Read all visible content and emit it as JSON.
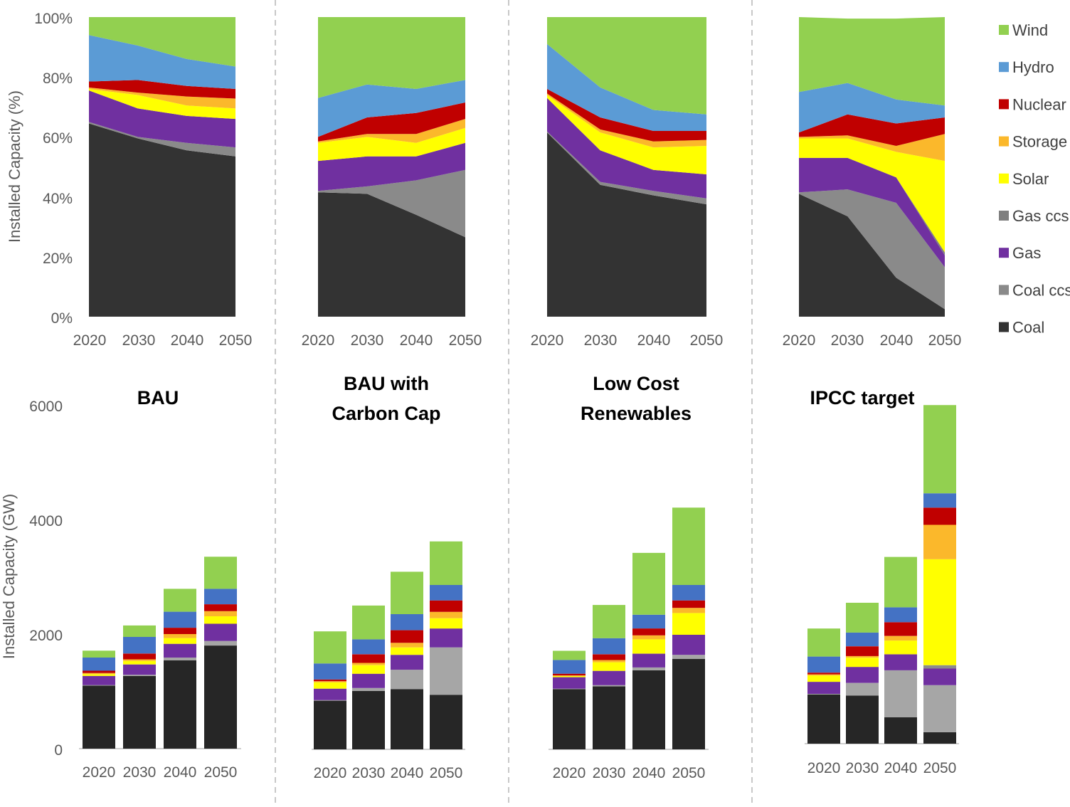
{
  "layers": [
    "Coal",
    "Coal ccs",
    "Gas",
    "Gas ccs",
    "Solar",
    "Storage",
    "Nuclear",
    "Hydro",
    "Wind"
  ],
  "colors": {
    "Coal": "#333333",
    "Coal ccs": "#8a8a8a",
    "Gas": "#7030a0",
    "Gas ccs": "#7f7f7f",
    "Solar": "#ffff00",
    "Storage": "#fbb82b",
    "Nuclear": "#c00000",
    "Hydro": "#5b9bd5",
    "Wind": "#92d050"
  },
  "bar_colors": {
    "Coal": "#262626",
    "Coal ccs": "#a6a6a6",
    "Gas": "#7030a0",
    "Gas ccs": "#8c8c8c",
    "Solar": "#ffff00",
    "Storage": "#fbb82b",
    "Nuclear": "#c00000",
    "Hydro": "#4472c4",
    "Wind": "#92d050"
  },
  "legend": {
    "order": [
      "Wind",
      "Hydro",
      "Nuclear",
      "Storage",
      "Solar",
      "Gas ccs",
      "Gas",
      "Coal ccs",
      "Coal"
    ],
    "placement": "right"
  },
  "chart_data": [
    {
      "type": "area",
      "stacked": true,
      "normalized": true,
      "title": "BAU",
      "ylabel": "Installed Capacity (%)",
      "ylim": [
        0,
        100
      ],
      "y_ticks": [
        "0%",
        "20%",
        "40%",
        "60%",
        "80%",
        "100%"
      ],
      "x": [
        "2020",
        "2030",
        "2040",
        "2050"
      ],
      "series": [
        {
          "name": "Coal",
          "values": [
            64.5,
            59.5,
            55.5,
            53.5
          ]
        },
        {
          "name": "Coal ccs",
          "values": [
            0.5,
            0.5,
            2.5,
            3
          ]
        },
        {
          "name": "Gas",
          "values": [
            10.5,
            9.5,
            9,
            9.5
          ]
        },
        {
          "name": "Gas ccs",
          "values": [
            0,
            0,
            0,
            0
          ]
        },
        {
          "name": "Solar",
          "values": [
            0.5,
            4.5,
            3.5,
            3.5
          ]
        },
        {
          "name": "Storage",
          "values": [
            0.5,
            0.8,
            3,
            3.3
          ]
        },
        {
          "name": "Nuclear",
          "values": [
            2,
            4.2,
            3.5,
            3.2
          ]
        },
        {
          "name": "Hydro",
          "values": [
            15.5,
            11.5,
            9,
            7.5
          ]
        },
        {
          "name": "Wind",
          "values": [
            6,
            9.5,
            14.5,
            16.5
          ]
        }
      ]
    },
    {
      "type": "area",
      "stacked": true,
      "normalized": true,
      "title": "BAU with Carbon Cap",
      "ylim": [
        0,
        100
      ],
      "x": [
        "2020",
        "2030",
        "2040",
        "2050"
      ],
      "series": [
        {
          "name": "Coal",
          "values": [
            41.5,
            41,
            34,
            26.5
          ]
        },
        {
          "name": "Coal ccs",
          "values": [
            0.5,
            2.5,
            11.5,
            22.5
          ]
        },
        {
          "name": "Gas",
          "values": [
            10,
            10,
            8,
            9
          ]
        },
        {
          "name": "Gas ccs",
          "values": [
            0,
            0,
            0,
            0
          ]
        },
        {
          "name": "Solar",
          "values": [
            6,
            6.5,
            4.5,
            5
          ]
        },
        {
          "name": "Storage",
          "values": [
            0.5,
            1,
            3,
            3
          ]
        },
        {
          "name": "Nuclear",
          "values": [
            1.5,
            5.5,
            7,
            5.5
          ]
        },
        {
          "name": "Hydro",
          "values": [
            13,
            11,
            8,
            7.5
          ]
        },
        {
          "name": "Wind",
          "values": [
            27,
            22.5,
            24,
            21
          ]
        }
      ]
    },
    {
      "type": "area",
      "stacked": true,
      "normalized": true,
      "title": "Low Cost Renewables",
      "ylim": [
        0,
        100
      ],
      "x": [
        "2020",
        "2030",
        "2040",
        "2050"
      ],
      "series": [
        {
          "name": "Coal",
          "values": [
            61.5,
            44,
            40.5,
            37.5
          ]
        },
        {
          "name": "Coal ccs",
          "values": [
            0.3,
            1,
            1.5,
            2
          ]
        },
        {
          "name": "Gas",
          "values": [
            11.2,
            10.5,
            7,
            8
          ]
        },
        {
          "name": "Gas ccs",
          "values": [
            0,
            0,
            0,
            0
          ]
        },
        {
          "name": "Solar",
          "values": [
            1,
            6,
            7.5,
            9.5
          ]
        },
        {
          "name": "Storage",
          "values": [
            0.5,
            1,
            2,
            2
          ]
        },
        {
          "name": "Nuclear",
          "values": [
            1.5,
            4,
            3.5,
            3
          ]
        },
        {
          "name": "Hydro",
          "values": [
            15,
            10,
            7,
            5.5
          ]
        },
        {
          "name": "Wind",
          "values": [
            9,
            23.5,
            31,
            32.5
          ]
        }
      ]
    },
    {
      "type": "area",
      "stacked": true,
      "normalized": true,
      "title": "IPCC target",
      "ylim": [
        0,
        100
      ],
      "x": [
        "2020",
        "2030",
        "2040",
        "2050"
      ],
      "series": [
        {
          "name": "Coal",
          "values": [
            41,
            33.5,
            13,
            2.5
          ]
        },
        {
          "name": "Coal ccs",
          "values": [
            0.5,
            9,
            25,
            14
          ]
        },
        {
          "name": "Gas",
          "values": [
            11.5,
            10.5,
            8.5,
            4
          ]
        },
        {
          "name": "Gas ccs",
          "values": [
            0,
            0,
            0,
            1
          ]
        },
        {
          "name": "Solar",
          "values": [
            6.5,
            6.5,
            8.5,
            30.5
          ]
        },
        {
          "name": "Storage",
          "values": [
            0.5,
            1,
            2,
            9
          ]
        },
        {
          "name": "Nuclear",
          "values": [
            1.5,
            7,
            7.5,
            5.5
          ]
        },
        {
          "name": "Hydro",
          "values": [
            13.5,
            10.5,
            8,
            4
          ]
        },
        {
          "name": "Wind",
          "values": [
            25,
            21.5,
            27,
            29.5
          ]
        }
      ]
    },
    {
      "type": "bar",
      "stacked": true,
      "ylabel": "Installed Capacity (GW)",
      "ylim": [
        0,
        6000
      ],
      "y_ticks": [
        "0",
        "2000",
        "4000",
        "6000"
      ],
      "categories": [
        "2020",
        "2030",
        "2040",
        "2050"
      ],
      "series": [
        {
          "name": "Coal",
          "values": [
            1100,
            1270,
            1540,
            1800
          ]
        },
        {
          "name": "Coal ccs",
          "values": [
            10,
            20,
            50,
            80
          ]
        },
        {
          "name": "Gas",
          "values": [
            160,
            180,
            240,
            300
          ]
        },
        {
          "name": "Gas ccs",
          "values": [
            0,
            0,
            0,
            0
          ]
        },
        {
          "name": "Solar",
          "values": [
            30,
            60,
            100,
            130
          ]
        },
        {
          "name": "Storage",
          "values": [
            20,
            30,
            70,
            90
          ]
        },
        {
          "name": "Nuclear",
          "values": [
            40,
            100,
            110,
            120
          ]
        },
        {
          "name": "Hydro",
          "values": [
            230,
            290,
            280,
            270
          ]
        },
        {
          "name": "Wind",
          "values": [
            120,
            200,
            400,
            560
          ]
        }
      ]
    },
    {
      "type": "bar",
      "stacked": true,
      "ylim": [
        0,
        6000
      ],
      "categories": [
        "2020",
        "2030",
        "2040",
        "2050"
      ],
      "series": [
        {
          "name": "Coal",
          "values": [
            850,
            1020,
            1050,
            950
          ]
        },
        {
          "name": "Coal ccs",
          "values": [
            10,
            50,
            340,
            830
          ]
        },
        {
          "name": "Gas",
          "values": [
            200,
            250,
            260,
            330
          ]
        },
        {
          "name": "Gas ccs",
          "values": [
            0,
            0,
            0,
            0
          ]
        },
        {
          "name": "Solar",
          "values": [
            110,
            150,
            130,
            180
          ]
        },
        {
          "name": "Storage",
          "values": [
            20,
            40,
            80,
            110
          ]
        },
        {
          "name": "Nuclear",
          "values": [
            30,
            150,
            220,
            200
          ]
        },
        {
          "name": "Hydro",
          "values": [
            280,
            260,
            280,
            270
          ]
        },
        {
          "name": "Wind",
          "values": [
            560,
            590,
            740,
            760
          ]
        }
      ]
    },
    {
      "type": "bar",
      "stacked": true,
      "ylim": [
        0,
        6000
      ],
      "categories": [
        "2020",
        "2030",
        "2040",
        "2050"
      ],
      "series": [
        {
          "name": "Coal",
          "values": [
            1050,
            1100,
            1380,
            1580
          ]
        },
        {
          "name": "Coal ccs",
          "values": [
            10,
            20,
            50,
            70
          ]
        },
        {
          "name": "Gas",
          "values": [
            200,
            250,
            240,
            350
          ]
        },
        {
          "name": "Gas ccs",
          "values": [
            0,
            0,
            0,
            0
          ]
        },
        {
          "name": "Solar",
          "values": [
            20,
            150,
            250,
            380
          ]
        },
        {
          "name": "Storage",
          "values": [
            10,
            40,
            70,
            90
          ]
        },
        {
          "name": "Nuclear",
          "values": [
            30,
            100,
            120,
            130
          ]
        },
        {
          "name": "Hydro",
          "values": [
            240,
            280,
            240,
            270
          ]
        },
        {
          "name": "Wind",
          "values": [
            160,
            580,
            1080,
            1350
          ]
        }
      ]
    },
    {
      "type": "bar",
      "stacked": true,
      "ylim": [
        0,
        6000
      ],
      "categories": [
        "2020",
        "2030",
        "2040",
        "2050"
      ],
      "series": [
        {
          "name": "Coal",
          "values": [
            860,
            840,
            460,
            200
          ]
        },
        {
          "name": "Coal ccs",
          "values": [
            10,
            220,
            820,
            820
          ]
        },
        {
          "name": "Gas",
          "values": [
            210,
            280,
            280,
            290
          ]
        },
        {
          "name": "Gas ccs",
          "values": [
            0,
            0,
            0,
            60
          ]
        },
        {
          "name": "Solar",
          "values": [
            110,
            160,
            240,
            1850
          ]
        },
        {
          "name": "Storage",
          "values": [
            20,
            30,
            80,
            600
          ]
        },
        {
          "name": "Nuclear",
          "values": [
            30,
            170,
            240,
            300
          ]
        },
        {
          "name": "Hydro",
          "values": [
            280,
            240,
            260,
            250
          ]
        },
        {
          "name": "Wind",
          "values": [
            490,
            520,
            880,
            1540
          ]
        }
      ]
    }
  ],
  "titles": [
    "BAU",
    "BAU with",
    "Carbon Cap",
    "Low Cost",
    "Renewables",
    "IPCC target"
  ]
}
